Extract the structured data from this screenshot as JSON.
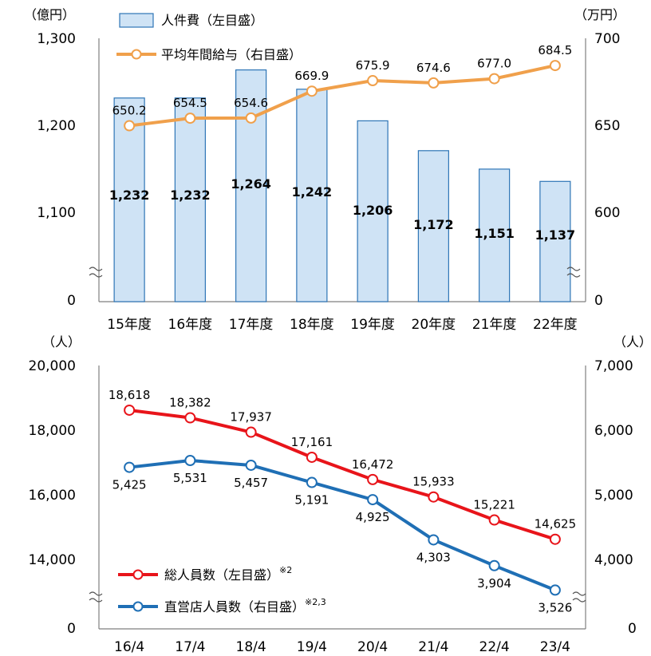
{
  "chart_data": [
    {
      "type": "bar+line",
      "categories": [
        "15年度",
        "16年度",
        "17年度",
        "18年度",
        "19年度",
        "20年度",
        "21年度",
        "22年度"
      ],
      "left_unit": "（億円）",
      "right_unit": "（万円）",
      "left_ticks": [
        "1,300",
        "1,200",
        "1,100",
        "0"
      ],
      "right_ticks": [
        "700",
        "650",
        "600",
        "0"
      ],
      "ylim_left": [
        1000,
        1300
      ],
      "ylim_right": [
        550,
        700
      ],
      "axis_break": true,
      "series": [
        {
          "name": "人件費（左目盛）",
          "kind": "bar",
          "axis": "left",
          "values": [
            1232,
            1232,
            1264,
            1242,
            1206,
            1172,
            1151,
            1137
          ],
          "labels": [
            "1,232",
            "1,232",
            "1,264",
            "1,242",
            "1,206",
            "1,172",
            "1,151",
            "1,137"
          ],
          "color": "#cfe3f5",
          "stroke": "#2e75b6"
        },
        {
          "name": "平均年間給与（右目盛）",
          "kind": "line",
          "axis": "right",
          "values": [
            650.2,
            654.5,
            654.6,
            669.9,
            675.9,
            674.6,
            677.0,
            684.5
          ],
          "labels": [
            "650.2",
            "654.5",
            "654.6",
            "669.9",
            "675.9",
            "674.6",
            "677.0",
            "684.5"
          ],
          "color": "#f0a04b"
        }
      ]
    },
    {
      "type": "line",
      "categories": [
        "16/4",
        "17/4",
        "18/4",
        "19/4",
        "20/4",
        "21/4",
        "22/4",
        "23/4"
      ],
      "left_unit": "（人）",
      "right_unit": "（人）",
      "left_ticks": [
        "20,000",
        "18,000",
        "16,000",
        "14,000",
        "0"
      ],
      "right_ticks": [
        "7,000",
        "6,000",
        "5,000",
        "4,000",
        "0"
      ],
      "ylim_left": [
        12000,
        20000
      ],
      "ylim_right": [
        3000,
        7000
      ],
      "axis_break": true,
      "series": [
        {
          "name": "総人員数（左目盛）",
          "sup": "※2",
          "axis": "left",
          "values": [
            18618,
            18382,
            17937,
            17161,
            16472,
            15933,
            15221,
            14625
          ],
          "labels": [
            "18,618",
            "18,382",
            "17,937",
            "17,161",
            "16,472",
            "15,933",
            "15,221",
            "14,625"
          ],
          "color": "#e8141a"
        },
        {
          "name": "直営店人員数（右目盛）",
          "sup": "※2,3",
          "axis": "right",
          "values": [
            5425,
            5531,
            5457,
            5191,
            4925,
            4303,
            3904,
            3526
          ],
          "labels": [
            "5,425",
            "5,531",
            "5,457",
            "5,191",
            "4,925",
            "4,303",
            "3,904",
            "3,526"
          ],
          "color": "#1f6fb5"
        }
      ]
    }
  ]
}
